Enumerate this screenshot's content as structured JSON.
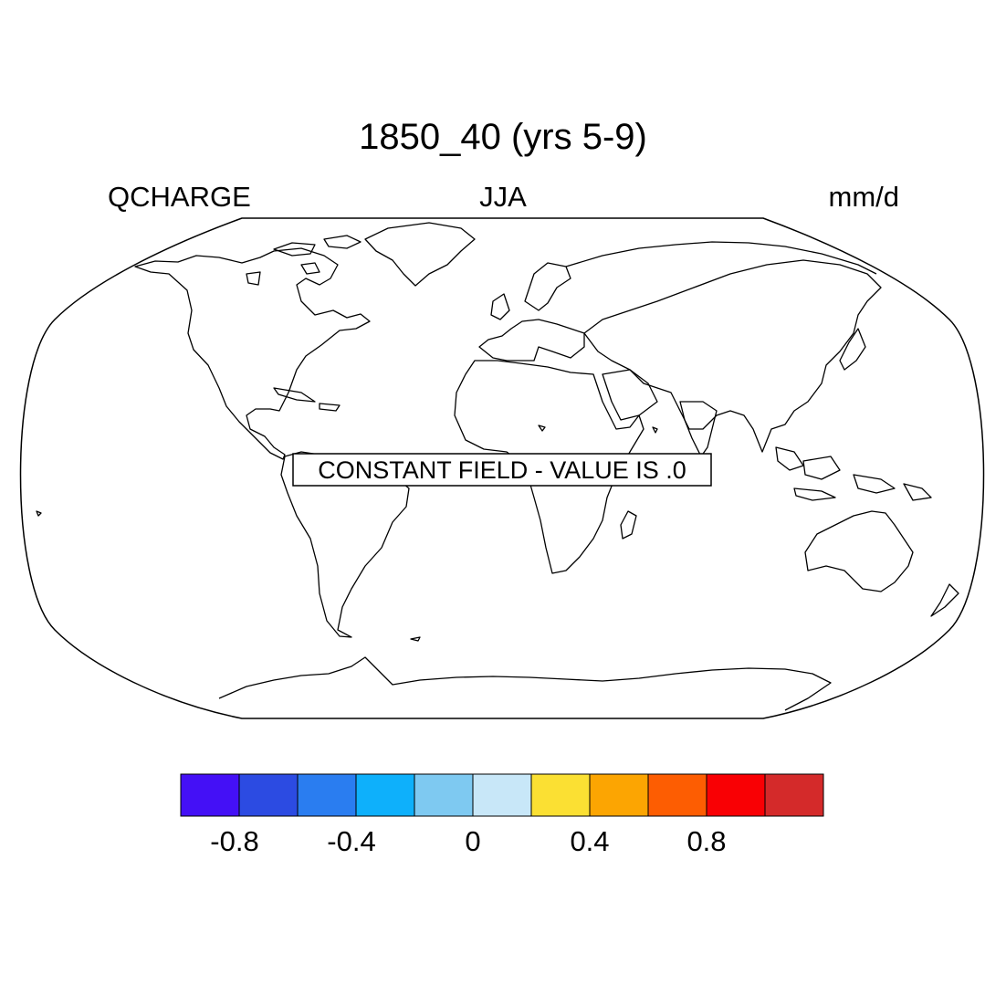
{
  "title": "1850_40 (yrs 5-9)",
  "subtitle_left": "QCHARGE",
  "subtitle_center": "JJA",
  "subtitle_right": "mm/d",
  "message": "CONSTANT FIELD - VALUE IS .0",
  "colorbar": {
    "colors": [
      "#4410f6",
      "#2c4be2",
      "#2a7df0",
      "#0eb0fb",
      "#7ec9f1",
      "#c8e7f8",
      "#fbe033",
      "#fca502",
      "#fd5d02",
      "#f90004",
      "#d42a2a"
    ],
    "tick_labels": [
      "-0.8",
      "-0.4",
      "0",
      "0.4",
      "0.8"
    ]
  },
  "chart_data": {
    "type": "heatmap",
    "variable": "QCHARGE",
    "season": "JJA",
    "units": "mm/d",
    "constant_value": 0.0,
    "levels": [
      -1.0,
      -0.8,
      -0.6,
      -0.4,
      -0.2,
      0,
      0.2,
      0.4,
      0.6,
      0.8,
      1.0
    ]
  }
}
